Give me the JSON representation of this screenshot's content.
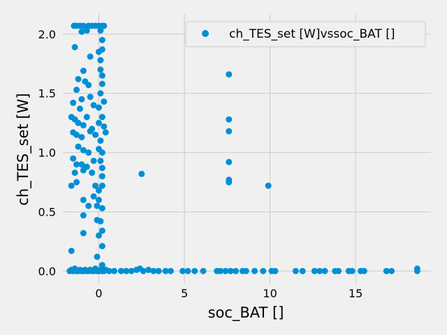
{
  "chart_data": {
    "type": "scatter",
    "xlabel": "soc_BAT []",
    "ylabel": "ch_TES_set [W]",
    "xlim": [
      -2.1,
      19.4
    ],
    "ylim": [
      -0.11,
      2.17
    ],
    "x_ticks": [
      0,
      5,
      10,
      15
    ],
    "y_ticks": [
      0.0,
      0.5,
      1.0,
      1.5,
      2.0
    ],
    "x_tick_labels": [
      "0",
      "5",
      "10",
      "15"
    ],
    "y_tick_labels": [
      "0.0",
      "0.5",
      "1.0",
      "1.5",
      "2.0"
    ],
    "grid": true,
    "legend_position": "top-right",
    "colors": {
      "series": "#008fd5",
      "grid": "#cbcbcb",
      "background": "#f0f0f0"
    },
    "series": [
      {
        "name": "ch_TES_set [W]vssoc_BAT []",
        "points": [
          [
            -1.45,
            2.07
          ],
          [
            -1.3,
            2.07
          ],
          [
            -1.1,
            2.07
          ],
          [
            -0.9,
            2.07
          ],
          [
            -0.6,
            2.07
          ],
          [
            -0.4,
            2.07
          ],
          [
            -0.2,
            2.07
          ],
          [
            0.0,
            2.07
          ],
          [
            0.2,
            2.07
          ],
          [
            0.3,
            2.07
          ],
          [
            -1.0,
            2.02
          ],
          [
            -0.7,
            2.03
          ],
          [
            0.1,
            2.03
          ],
          [
            -1.4,
            1.89
          ],
          [
            0.0,
            1.85
          ],
          [
            0.2,
            1.87
          ],
          [
            0.2,
            1.95
          ],
          [
            0.1,
            1.78
          ],
          [
            -0.5,
            1.81
          ],
          [
            0.1,
            1.7
          ],
          [
            0.2,
            1.65
          ],
          [
            -0.9,
            1.69
          ],
          [
            -0.8,
            1.6
          ],
          [
            -1.2,
            1.62
          ],
          [
            -1.3,
            1.53
          ],
          [
            -0.6,
            1.57
          ],
          [
            0.2,
            1.58
          ],
          [
            0.1,
            1.5
          ],
          [
            -1.0,
            1.45
          ],
          [
            -0.5,
            1.47
          ],
          [
            -1.5,
            1.42
          ],
          [
            -0.3,
            1.4
          ],
          [
            0.0,
            1.38
          ],
          [
            0.3,
            1.43
          ],
          [
            -1.1,
            1.37
          ],
          [
            -1.6,
            1.3
          ],
          [
            -1.4,
            1.28
          ],
          [
            -1.2,
            1.25
          ],
          [
            -0.9,
            1.23
          ],
          [
            -0.7,
            1.3
          ],
          [
            -0.4,
            1.2
          ],
          [
            0.0,
            1.25
          ],
          [
            0.2,
            1.3
          ],
          [
            0.3,
            1.22
          ],
          [
            -1.5,
            1.17
          ],
          [
            -1.3,
            1.15
          ],
          [
            -1.0,
            1.13
          ],
          [
            -0.5,
            1.18
          ],
          [
            -0.2,
            1.15
          ],
          [
            0.1,
            1.1
          ],
          [
            0.4,
            1.17
          ],
          [
            -1.2,
            1.05
          ],
          [
            -0.9,
            1.02
          ],
          [
            -0.6,
            1.0
          ],
          [
            0.0,
            1.03
          ],
          [
            0.2,
            1.0
          ],
          [
            -1.5,
            0.95
          ],
          [
            -1.3,
            0.9
          ],
          [
            -1.0,
            0.9
          ],
          [
            -0.7,
            0.88
          ],
          [
            -0.3,
            0.93
          ],
          [
            0.1,
            0.93
          ],
          [
            0.2,
            0.87
          ],
          [
            -1.4,
            0.83
          ],
          [
            -0.9,
            0.85
          ],
          [
            -0.4,
            0.83
          ],
          [
            0.2,
            0.8
          ],
          [
            -1.3,
            0.75
          ],
          [
            -1.6,
            0.72
          ],
          [
            -0.2,
            0.72
          ],
          [
            0.2,
            0.72
          ],
          [
            0.0,
            0.68
          ],
          [
            -0.3,
            0.63
          ],
          [
            -0.9,
            0.6
          ],
          [
            0.0,
            0.6
          ],
          [
            -0.6,
            0.55
          ],
          [
            -0.1,
            0.55
          ],
          [
            0.2,
            0.53
          ],
          [
            -0.9,
            0.47
          ],
          [
            -0.1,
            0.43
          ],
          [
            0.1,
            0.42
          ],
          [
            0.2,
            0.34
          ],
          [
            -0.9,
            0.32
          ],
          [
            0.0,
            0.3
          ],
          [
            0.2,
            0.21
          ],
          [
            -1.6,
            0.17
          ],
          [
            -0.1,
            0.12
          ],
          [
            0.2,
            0.05
          ],
          [
            2.5,
            0.82
          ],
          [
            7.6,
            1.66
          ],
          [
            7.6,
            1.28
          ],
          [
            7.6,
            1.18
          ],
          [
            7.6,
            0.92
          ],
          [
            7.6,
            0.77
          ],
          [
            7.6,
            0.75
          ],
          [
            9.9,
            0.72
          ],
          [
            -1.7,
            0.0
          ],
          [
            -1.6,
            0.01
          ],
          [
            -1.5,
            0.0
          ],
          [
            -1.4,
            0.02
          ],
          [
            -1.3,
            0.0
          ],
          [
            -1.2,
            0.0
          ],
          [
            -1.1,
            0.01
          ],
          [
            -1.0,
            0.0
          ],
          [
            -0.9,
            0.0
          ],
          [
            -0.8,
            0.01
          ],
          [
            -0.7,
            0.0
          ],
          [
            -0.6,
            0.0
          ],
          [
            -0.5,
            0.01
          ],
          [
            -0.4,
            0.0
          ],
          [
            -0.3,
            0.0
          ],
          [
            -0.2,
            0.02
          ],
          [
            -0.1,
            0.0
          ],
          [
            0.0,
            0.0
          ],
          [
            0.1,
            0.01
          ],
          [
            0.2,
            0.0
          ],
          [
            0.3,
            0.0
          ],
          [
            0.4,
            0.01
          ],
          [
            0.6,
            0.0
          ],
          [
            0.9,
            0.0
          ],
          [
            1.3,
            0.0
          ],
          [
            1.6,
            0.0
          ],
          [
            1.9,
            0.0
          ],
          [
            2.2,
            0.01
          ],
          [
            2.4,
            0.02
          ],
          [
            2.6,
            0.0
          ],
          [
            2.9,
            0.01
          ],
          [
            3.2,
            0.0
          ],
          [
            3.5,
            0.0
          ],
          [
            3.9,
            0.0
          ],
          [
            4.2,
            0.0
          ],
          [
            4.9,
            0.0
          ],
          [
            5.2,
            0.0
          ],
          [
            5.6,
            0.0
          ],
          [
            6.1,
            0.0
          ],
          [
            6.9,
            0.0
          ],
          [
            7.1,
            0.0
          ],
          [
            7.4,
            0.0
          ],
          [
            7.7,
            0.0
          ],
          [
            8.0,
            0.0
          ],
          [
            8.4,
            0.0
          ],
          [
            8.6,
            0.0
          ],
          [
            9.1,
            0.0
          ],
          [
            9.6,
            0.0
          ],
          [
            10.1,
            0.0
          ],
          [
            10.3,
            0.0
          ],
          [
            11.5,
            0.0
          ],
          [
            11.9,
            0.0
          ],
          [
            12.6,
            0.0
          ],
          [
            12.9,
            0.0
          ],
          [
            13.2,
            0.0
          ],
          [
            13.8,
            0.0
          ],
          [
            14.0,
            0.0
          ],
          [
            14.6,
            0.0
          ],
          [
            14.8,
            0.0
          ],
          [
            15.3,
            0.0
          ],
          [
            15.5,
            0.0
          ],
          [
            16.8,
            0.0
          ],
          [
            17.1,
            0.0
          ],
          [
            18.6,
            0.0
          ],
          [
            18.6,
            0.02
          ]
        ]
      }
    ]
  }
}
